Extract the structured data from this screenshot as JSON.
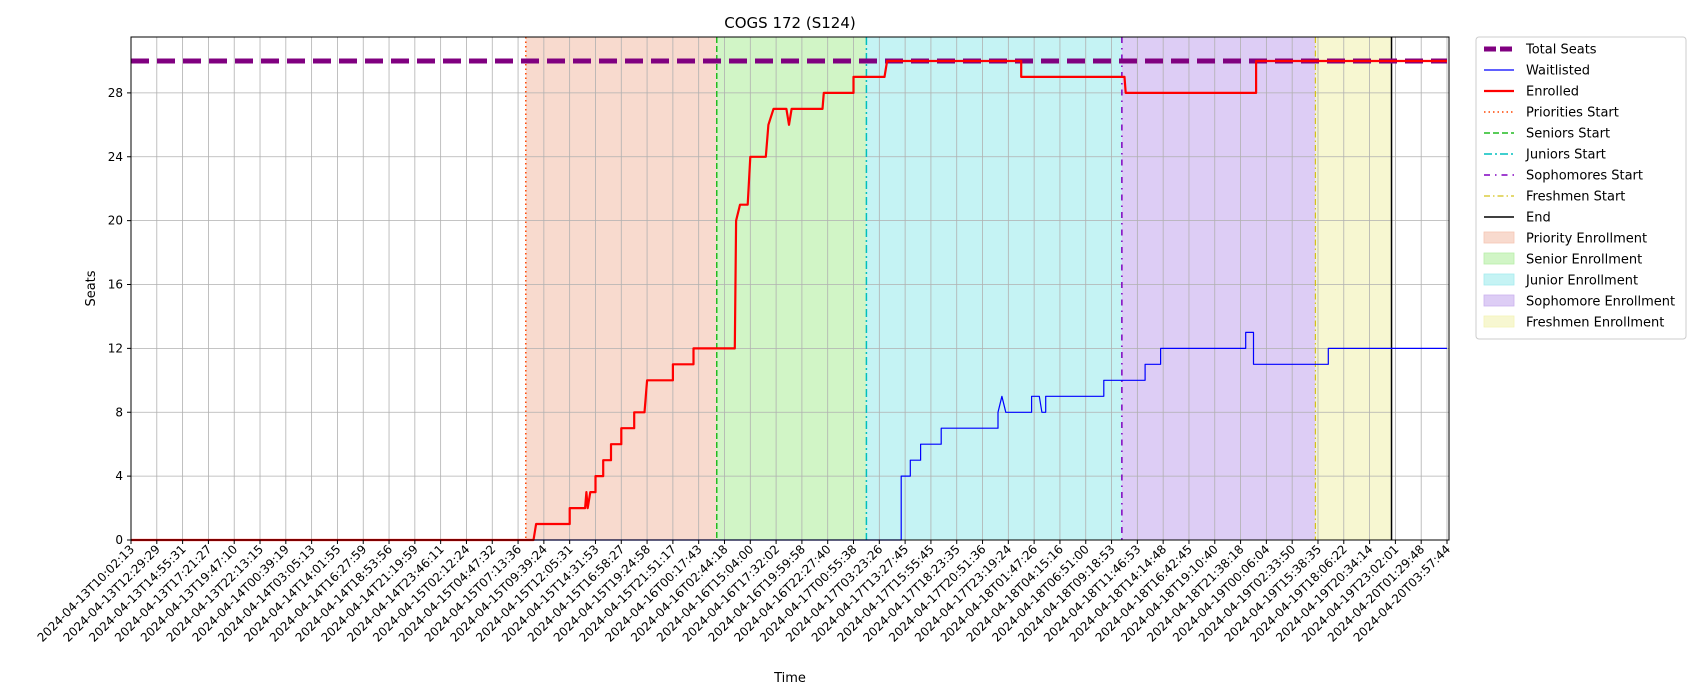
{
  "chart_data": {
    "type": "line",
    "title": "COGS 172 (S124)",
    "xlabel": "Time",
    "ylabel": "Seats",
    "xlim": [
      "2024-04-13T10:02:13",
      "2024-04-20T03:57:44"
    ],
    "ylim": [
      0,
      31.5
    ],
    "yticks": [
      0,
      4,
      8,
      12,
      16,
      20,
      24,
      28
    ],
    "xtick_labels": [
      "2024-04-13T10:02:13",
      "2024-04-13T12:29:29",
      "2024-04-13T14:55:31",
      "2024-04-13T17:21:27",
      "2024-04-13T19:47:10",
      "2024-04-13T22:13:15",
      "2024-04-14T00:39:19",
      "2024-04-14T03:05:13",
      "2024-04-14T14:01:55",
      "2024-04-14T16:27:59",
      "2024-04-14T18:53:56",
      "2024-04-14T21:19:59",
      "2024-04-14T23:46:11",
      "2024-04-15T02:12:24",
      "2024-04-15T04:47:32",
      "2024-04-15T07:13:36",
      "2024-04-15T09:39:24",
      "2024-04-15T12:05:31",
      "2024-04-15T14:31:53",
      "2024-04-15T16:58:27",
      "2024-04-15T19:24:58",
      "2024-04-15T21:51:17",
      "2024-04-16T00:17:43",
      "2024-04-16T02:44:18",
      "2024-04-16T15:04:00",
      "2024-04-16T17:32:02",
      "2024-04-16T19:59:58",
      "2024-04-16T22:27:40",
      "2024-04-17T00:55:38",
      "2024-04-17T03:23:26",
      "2024-04-17T13:27:45",
      "2024-04-17T15:55:45",
      "2024-04-17T18:23:35",
      "2024-04-17T20:51:36",
      "2024-04-17T23:19:24",
      "2024-04-18T01:47:26",
      "2024-04-18T04:15:16",
      "2024-04-18T06:51:00",
      "2024-04-18T09:18:53",
      "2024-04-18T11:46:53",
      "2024-04-18T14:14:48",
      "2024-04-18T16:42:45",
      "2024-04-18T19:10:40",
      "2024-04-18T21:38:18",
      "2024-04-19T00:06:04",
      "2024-04-19T02:33:50",
      "2024-04-19T15:38:35",
      "2024-04-19T18:06:22",
      "2024-04-19T20:34:14",
      "2024-04-19T23:02:01",
      "2024-04-20T01:29:48",
      "2024-04-20T03:57:44"
    ],
    "grid": true,
    "legend_position": "outside-right",
    "x_axis_note": "x positions are sample indices; tick labels show the timestamp at each tick",
    "series": [
      {
        "name": "Total Seats",
        "color": "#800080",
        "style": "dashed-thick",
        "points": [
          [
            0,
            30
          ],
          [
            51,
            30
          ]
        ]
      },
      {
        "name": "Waitlisted",
        "color": "#0000ff",
        "style": "solid-thin",
        "points": [
          [
            0,
            0
          ],
          [
            29.85,
            0
          ],
          [
            29.85,
            4
          ],
          [
            30.2,
            4
          ],
          [
            30.2,
            5
          ],
          [
            30.6,
            5
          ],
          [
            30.6,
            6
          ],
          [
            31.4,
            6
          ],
          [
            31.4,
            7
          ],
          [
            33.6,
            7
          ],
          [
            33.6,
            8
          ],
          [
            33.75,
            9
          ],
          [
            33.9,
            8
          ],
          [
            34.9,
            8
          ],
          [
            34.9,
            9
          ],
          [
            35.2,
            9
          ],
          [
            35.3,
            8
          ],
          [
            35.45,
            8
          ],
          [
            35.45,
            9
          ],
          [
            37.7,
            9
          ],
          [
            37.7,
            10
          ],
          [
            39.3,
            10
          ],
          [
            39.3,
            11
          ],
          [
            39.9,
            11
          ],
          [
            39.9,
            12
          ],
          [
            43.2,
            12
          ],
          [
            43.2,
            13
          ],
          [
            43.5,
            13
          ],
          [
            43.5,
            11
          ],
          [
            46.4,
            11
          ],
          [
            46.4,
            12
          ],
          [
            51,
            12
          ]
        ]
      },
      {
        "name": "Enrolled",
        "color": "#ff0000",
        "style": "solid-thick",
        "points": [
          [
            0,
            0
          ],
          [
            15.6,
            0
          ],
          [
            15.7,
            1
          ],
          [
            17,
            1
          ],
          [
            17,
            2
          ],
          [
            17.6,
            2
          ],
          [
            17.65,
            3
          ],
          [
            17.7,
            2
          ],
          [
            17.8,
            3
          ],
          [
            18,
            3
          ],
          [
            18,
            4
          ],
          [
            18.3,
            4
          ],
          [
            18.3,
            5
          ],
          [
            18.6,
            5
          ],
          [
            18.6,
            6
          ],
          [
            19,
            6
          ],
          [
            19,
            7
          ],
          [
            19.5,
            7
          ],
          [
            19.5,
            8
          ],
          [
            19.9,
            8
          ],
          [
            19.95,
            9
          ],
          [
            20,
            10
          ],
          [
            21,
            10
          ],
          [
            21,
            11
          ],
          [
            21.8,
            11
          ],
          [
            21.8,
            12
          ],
          [
            23.4,
            12
          ],
          [
            23.45,
            20
          ],
          [
            23.6,
            21
          ],
          [
            23.9,
            21
          ],
          [
            24,
            24
          ],
          [
            24.6,
            24
          ],
          [
            24.7,
            26
          ],
          [
            24.9,
            27
          ],
          [
            25.4,
            27
          ],
          [
            25.5,
            26
          ],
          [
            25.6,
            27
          ],
          [
            26.8,
            27
          ],
          [
            26.85,
            28
          ],
          [
            28,
            28
          ],
          [
            28,
            29
          ],
          [
            29.2,
            29
          ],
          [
            29.3,
            30
          ],
          [
            34.5,
            30
          ],
          [
            34.5,
            29
          ],
          [
            38.5,
            29
          ],
          [
            38.55,
            28
          ],
          [
            43.6,
            28
          ],
          [
            43.6,
            30
          ],
          [
            51,
            30
          ]
        ]
      }
    ],
    "event_lines": [
      {
        "name": "Priorities Start",
        "color": "#ff4500",
        "style": "dotted",
        "x": 15.3
      },
      {
        "name": "Seniors Start",
        "color": "#22bb22",
        "style": "dashed",
        "x": 22.7
      },
      {
        "name": "Juniors Start",
        "color": "#00bfbf",
        "style": "dashdot",
        "x": 28.5
      },
      {
        "name": "Sophomores Start",
        "color": "#8000c0",
        "style": "sparse-dashdot",
        "x": 38.4
      },
      {
        "name": "Freshmen Start",
        "color": "#d4c21a",
        "style": "dashdot-thin",
        "x": 45.9
      },
      {
        "name": "End",
        "color": "#000000",
        "style": "solid",
        "x": 48.85
      }
    ],
    "regions": [
      {
        "name": "Priority Enrollment",
        "color": "#f5c6b4",
        "x0": 15.3,
        "x1": 22.7
      },
      {
        "name": "Senior Enrollment",
        "color": "#b8efa8",
        "x0": 22.7,
        "x1": 28.5
      },
      {
        "name": "Junior Enrollment",
        "color": "#a6ecee",
        "x0": 28.5,
        "x1": 38.4
      },
      {
        "name": "Sophomore Enrollment",
        "color": "#cbb2ef",
        "x0": 38.4,
        "x1": 45.9
      },
      {
        "name": "Freshmen Enrollment",
        "color": "#f3f3b8",
        "x0": 45.9,
        "x1": 48.85
      }
    ]
  }
}
